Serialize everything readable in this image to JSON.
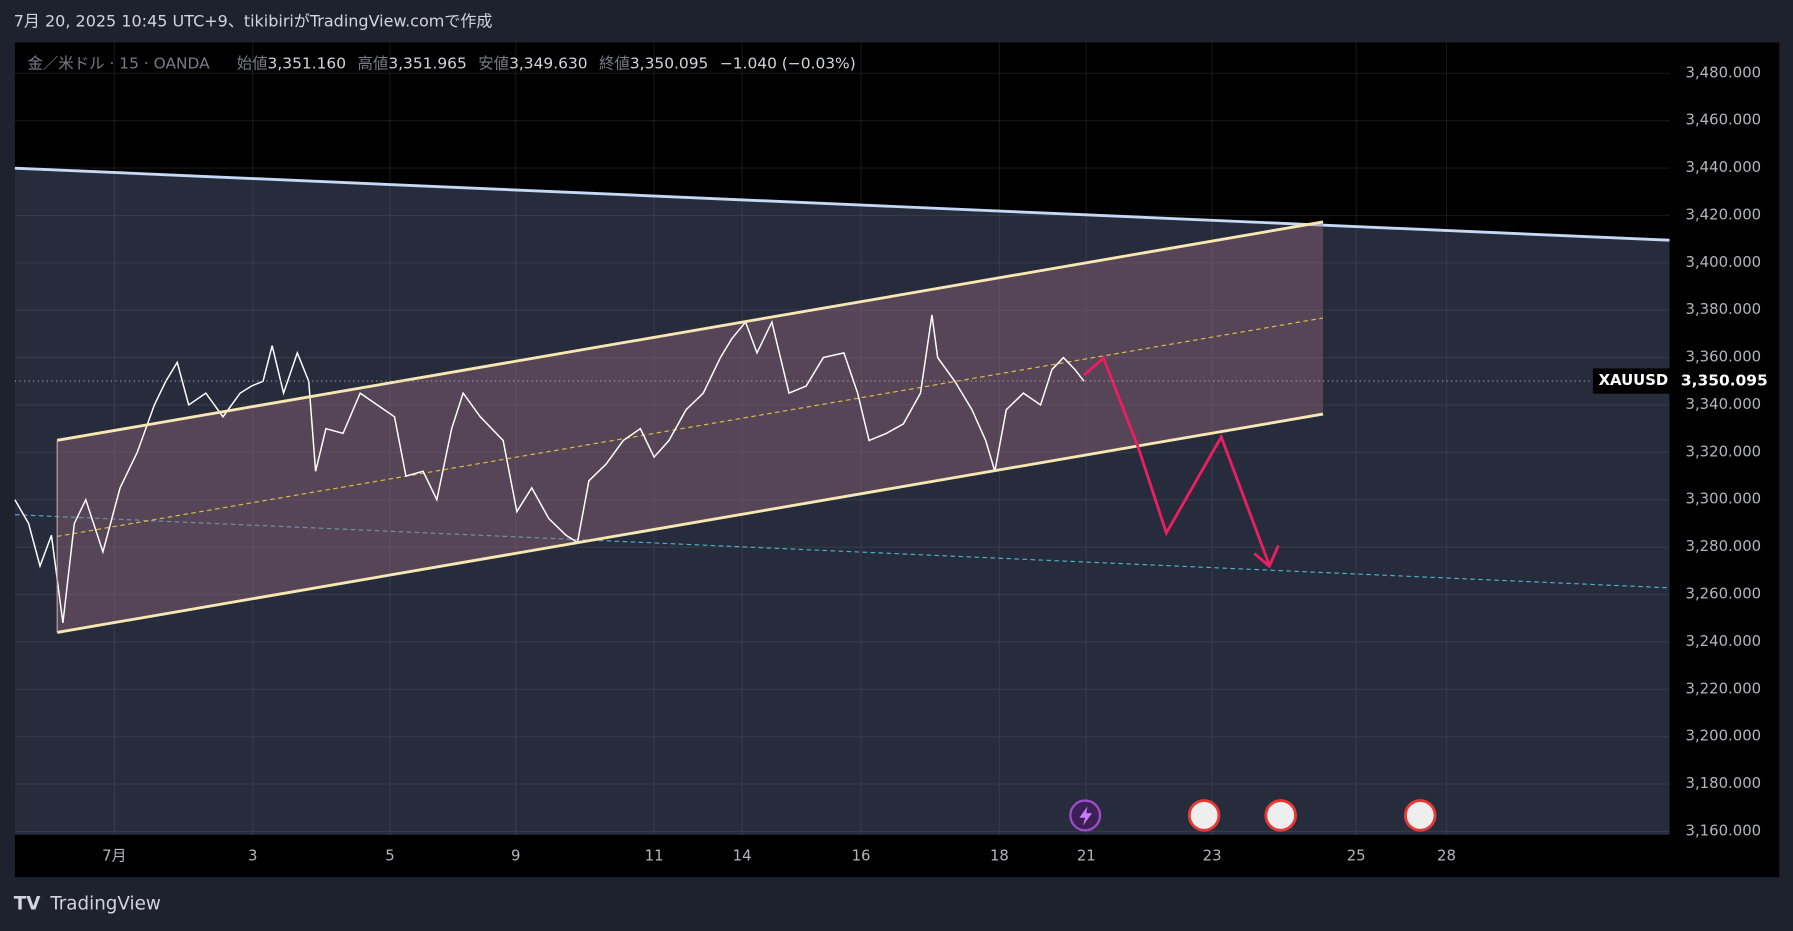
{
  "header": {
    "caption": "7月 20, 2025 10:45 UTC+9、tikibiriがTradingView.comで作成",
    "symbol": "金／米ドル · 15 · OANDA",
    "ohlc": [
      {
        "label": "始値",
        "value": "3,351.160"
      },
      {
        "label": "高値",
        "value": "3,351.965"
      },
      {
        "label": "安値",
        "value": "3,349.630"
      },
      {
        "label": "終値",
        "value": "3,350.095"
      }
    ],
    "change": "−1.040 (−0.03%)"
  },
  "footer": {
    "logo": "TradingView"
  },
  "chart_data": {
    "type": "line",
    "ticker": "XAUUSD",
    "last_price": {
      "value": 3350.095,
      "label": "3,350.095"
    },
    "x": [
      0,
      12,
      22,
      32,
      42,
      52,
      62,
      77,
      92,
      107,
      122,
      132,
      142,
      152,
      167,
      182,
      197,
      207,
      217,
      225,
      235,
      247,
      257,
      263,
      272,
      287,
      302,
      317,
      332,
      342,
      357,
      369,
      382,
      392,
      407,
      427,
      439,
      452,
      467,
      482,
      492,
      502,
      517,
      532,
      547,
      559,
      572,
      587,
      602,
      617,
      627,
      639,
      649,
      662,
      677,
      692,
      707,
      725,
      737,
      747,
      762,
      777,
      792,
      802,
      807,
      822,
      837,
      849,
      857,
      867,
      882,
      897,
      907,
      917,
      927,
      935
    ],
    "series": [
      {
        "name": "XAUUSD",
        "color": "#ffffff",
        "values": [
          3300,
          3290,
          3272,
          3285,
          3248,
          3290,
          3300,
          3278,
          3305,
          3320,
          3340,
          3350,
          3358,
          3340,
          3345,
          3335,
          3345,
          3348,
          3350,
          3365,
          3345,
          3362,
          3350,
          3312,
          3330,
          3328,
          3345,
          3340,
          3335,
          3310,
          3312,
          3300,
          3330,
          3345,
          3335,
          3325,
          3295,
          3305,
          3292,
          3285,
          3282,
          3308,
          3315,
          3325,
          3330,
          3318,
          3325,
          3338,
          3345,
          3360,
          3368,
          3375,
          3362,
          3375,
          3345,
          3348,
          3360,
          3362,
          3345,
          3325,
          3328,
          3332,
          3345,
          3378,
          3360,
          3350,
          3338,
          3325,
          3312,
          3338,
          3345,
          3340,
          3355,
          3360,
          3355,
          3350
        ]
      }
    ],
    "xlim": [
      0,
      1447
    ],
    "xticks": [
      {
        "value": 87,
        "label": "7月"
      },
      {
        "value": 208,
        "label": "3"
      },
      {
        "value": 328,
        "label": "5"
      },
      {
        "value": 438,
        "label": "9"
      },
      {
        "value": 559,
        "label": "11"
      },
      {
        "value": 636,
        "label": "14"
      },
      {
        "value": 740,
        "label": "16"
      },
      {
        "value": 861,
        "label": "18"
      },
      {
        "value": 937,
        "label": "21"
      },
      {
        "value": 1047,
        "label": "23"
      },
      {
        "value": 1173,
        "label": "25"
      },
      {
        "value": 1252,
        "label": "28"
      }
    ],
    "ylim": [
      3160,
      3480
    ],
    "yticks": [
      {
        "value": 3480,
        "label": "3,480.000"
      },
      {
        "value": 3460,
        "label": "3,460.000"
      },
      {
        "value": 3440,
        "label": "3,440.000"
      },
      {
        "value": 3420,
        "label": "3,420.000"
      },
      {
        "value": 3400,
        "label": "3,400.000"
      },
      {
        "value": 3380,
        "label": "3,380.000"
      },
      {
        "value": 3360,
        "label": "3,360.000"
      },
      {
        "value": 3340,
        "label": "3,340.000"
      },
      {
        "value": 3320,
        "label": "3,320.000"
      },
      {
        "value": 3300,
        "label": "3,300.000"
      },
      {
        "value": 3280,
        "label": "3,280.000"
      },
      {
        "value": 3260,
        "label": "3,260.000"
      },
      {
        "value": 3240,
        "label": "3,240.000"
      },
      {
        "value": 3220,
        "label": "3,220.000"
      },
      {
        "value": 3200,
        "label": "3,200.000"
      },
      {
        "value": 3180,
        "label": "3,180.000"
      },
      {
        "value": 3160,
        "label": "3,160.000"
      }
    ],
    "grid": true
  }
}
